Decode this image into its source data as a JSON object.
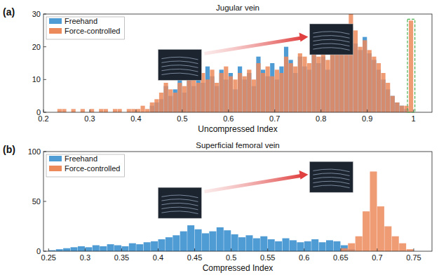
{
  "chart_data": [
    {
      "type": "histogram",
      "panel_label": "(a)",
      "title": "Jugular vein",
      "x_label": "Uncompressed Index",
      "bins": [
        0.2,
        0.21,
        0.22,
        0.23,
        0.24,
        0.25,
        0.26,
        0.27,
        0.28,
        0.29,
        0.3,
        0.31,
        0.32,
        0.33,
        0.34,
        0.35,
        0.36,
        0.37,
        0.38,
        0.39,
        0.4,
        0.41,
        0.42,
        0.43,
        0.44,
        0.45,
        0.46,
        0.47,
        0.48,
        0.49,
        0.5,
        0.51,
        0.52,
        0.53,
        0.54,
        0.55,
        0.56,
        0.57,
        0.58,
        0.59,
        0.6,
        0.61,
        0.62,
        0.63,
        0.64,
        0.65,
        0.66,
        0.67,
        0.68,
        0.69,
        0.7,
        0.71,
        0.72,
        0.73,
        0.74,
        0.75,
        0.76,
        0.77,
        0.78,
        0.79,
        0.8,
        0.81,
        0.82,
        0.83,
        0.84,
        0.85,
        0.86,
        0.87,
        0.88,
        0.89,
        0.9,
        0.91,
        0.92,
        0.93,
        0.94,
        0.95,
        0.96,
        0.97,
        0.98,
        0.99,
        1.0,
        1.01,
        1.02,
        1.03,
        1.04
      ],
      "series": [
        {
          "name": "Freehand",
          "color": "#4f9bd4",
          "values": [
            0,
            0,
            0,
            0,
            0,
            0,
            0,
            0,
            0,
            0,
            0,
            0,
            0,
            0,
            0,
            0,
            0,
            0,
            0,
            0,
            0,
            0,
            0,
            2,
            3,
            4,
            8,
            5,
            7,
            10,
            6,
            12,
            8,
            10,
            9,
            14,
            11,
            8,
            13,
            10,
            12,
            7,
            14,
            10,
            12,
            8,
            17,
            13,
            11,
            15,
            10,
            14,
            20,
            16,
            12,
            17,
            14,
            13,
            19,
            15,
            17,
            13,
            20,
            18,
            22,
            19,
            26,
            21,
            19,
            23,
            18,
            16,
            13,
            10,
            7,
            5,
            3,
            2,
            1,
            0,
            0,
            0,
            0,
            0
          ]
        },
        {
          "name": "Force-controlled",
          "color": "#ec8a5c",
          "values": [
            0,
            0,
            0,
            1,
            1,
            0,
            1,
            0,
            1,
            0,
            1,
            0,
            1,
            1,
            0,
            1,
            1,
            0,
            1,
            1,
            1,
            2,
            1,
            3,
            4,
            6,
            9,
            7,
            6,
            9,
            8,
            10,
            11,
            9,
            12,
            10,
            13,
            9,
            12,
            14,
            11,
            10,
            12,
            11,
            13,
            10,
            15,
            12,
            14,
            11,
            13,
            12,
            17,
            15,
            14,
            18,
            17,
            15,
            21,
            17,
            19,
            16,
            22,
            19,
            24,
            27,
            30,
            25,
            20,
            22,
            19,
            17,
            15,
            12,
            9,
            5,
            3,
            2,
            2,
            28,
            0,
            0,
            0,
            0
          ]
        }
      ],
      "xlim": [
        0.2,
        1.04
      ],
      "xticks": [
        0.2,
        0.3,
        0.4,
        0.5,
        0.6,
        0.7,
        0.8,
        0.9,
        1
      ],
      "ylim": [
        0,
        30
      ],
      "yticks": [
        0,
        10,
        20,
        30
      ],
      "legend": "upper left"
    },
    {
      "type": "histogram",
      "panel_label": "(b)",
      "title": "Superficial femoral vein",
      "x_label": "Compressed Index",
      "bins": [
        0.25,
        0.26,
        0.27,
        0.28,
        0.29,
        0.3,
        0.31,
        0.32,
        0.33,
        0.34,
        0.35,
        0.36,
        0.37,
        0.38,
        0.39,
        0.4,
        0.41,
        0.42,
        0.43,
        0.44,
        0.45,
        0.46,
        0.47,
        0.48,
        0.49,
        0.5,
        0.51,
        0.52,
        0.53,
        0.54,
        0.55,
        0.56,
        0.57,
        0.58,
        0.59,
        0.6,
        0.61,
        0.62,
        0.63,
        0.64,
        0.65,
        0.66,
        0.67,
        0.68,
        0.69,
        0.7,
        0.71,
        0.72,
        0.73,
        0.74,
        0.75,
        0.76,
        0.77
      ],
      "series": [
        {
          "name": "Freehand",
          "color": "#4f9bd4",
          "values": [
            1,
            2,
            3,
            4,
            5,
            4,
            6,
            5,
            7,
            6,
            5,
            8,
            7,
            9,
            10,
            12,
            14,
            16,
            20,
            26,
            22,
            18,
            20,
            24,
            21,
            17,
            14,
            16,
            13,
            15,
            12,
            10,
            13,
            11,
            9,
            10,
            12,
            9,
            11,
            10,
            6,
            2,
            0,
            0,
            0,
            0,
            0,
            0,
            0,
            0,
            0,
            0
          ]
        },
        {
          "name": "Force-controlled",
          "color": "#ec8a5c",
          "values": [
            0,
            0,
            0,
            0,
            0,
            0,
            0,
            0,
            0,
            0,
            0,
            0,
            0,
            0,
            0,
            0,
            0,
            0,
            0,
            0,
            0,
            0,
            0,
            0,
            0,
            0,
            0,
            0,
            0,
            0,
            0,
            0,
            0,
            0,
            0,
            0,
            0,
            0,
            0,
            0,
            3,
            8,
            15,
            40,
            80,
            45,
            25,
            15,
            8,
            2,
            0,
            0
          ]
        }
      ],
      "xlim": [
        0.243,
        0.775
      ],
      "xticks": [
        0.25,
        0.3,
        0.35,
        0.4,
        0.45,
        0.5,
        0.55,
        0.6,
        0.65,
        0.7,
        0.75
      ],
      "ylim": [
        0,
        100
      ],
      "yticks": [
        0,
        50,
        100
      ],
      "legend": "upper left"
    }
  ]
}
